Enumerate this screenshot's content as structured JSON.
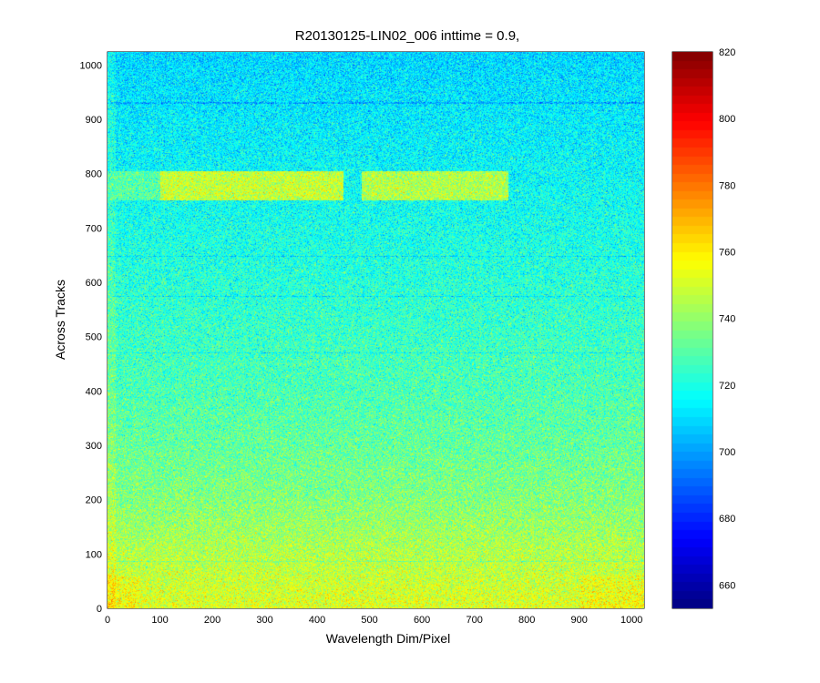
{
  "chart_data": {
    "type": "heatmap",
    "title": "R20130125-LIN02_006 inttime = 0.9,",
    "xlabel": "Wavelength Dim/Pixel",
    "ylabel": "Across Tracks",
    "xlim": [
      0,
      1024
    ],
    "ylim": [
      0,
      1024
    ],
    "x_ticks": [
      0,
      100,
      200,
      300,
      400,
      500,
      600,
      700,
      800,
      900,
      1000
    ],
    "y_ticks": [
      0,
      100,
      200,
      300,
      400,
      500,
      600,
      700,
      800,
      900,
      1000
    ],
    "colormap": "jet",
    "clim": [
      653,
      820
    ],
    "colorbar_ticks": [
      660,
      680,
      700,
      720,
      740,
      760,
      780,
      800,
      820
    ],
    "row_profile": [
      {
        "y": 0,
        "value": 752
      },
      {
        "y": 100,
        "value": 745
      },
      {
        "y": 200,
        "value": 737
      },
      {
        "y": 300,
        "value": 732
      },
      {
        "y": 400,
        "value": 728
      },
      {
        "y": 500,
        "value": 725
      },
      {
        "y": 600,
        "value": 722
      },
      {
        "y": 700,
        "value": 719
      },
      {
        "y": 800,
        "value": 716
      },
      {
        "y": 900,
        "value": 713
      },
      {
        "y": 1024,
        "value": 709
      }
    ],
    "bright_band": {
      "y_range": [
        750,
        805
      ],
      "segments": [
        {
          "x_range": [
            0,
            100
          ],
          "value": 730
        },
        {
          "x_range": [
            100,
            450
          ],
          "value": 748
        },
        {
          "x_range": [
            485,
            765
          ],
          "value": 745
        }
      ]
    },
    "dark_lines_y": [
      930,
      648,
      574,
      470,
      86
    ]
  }
}
